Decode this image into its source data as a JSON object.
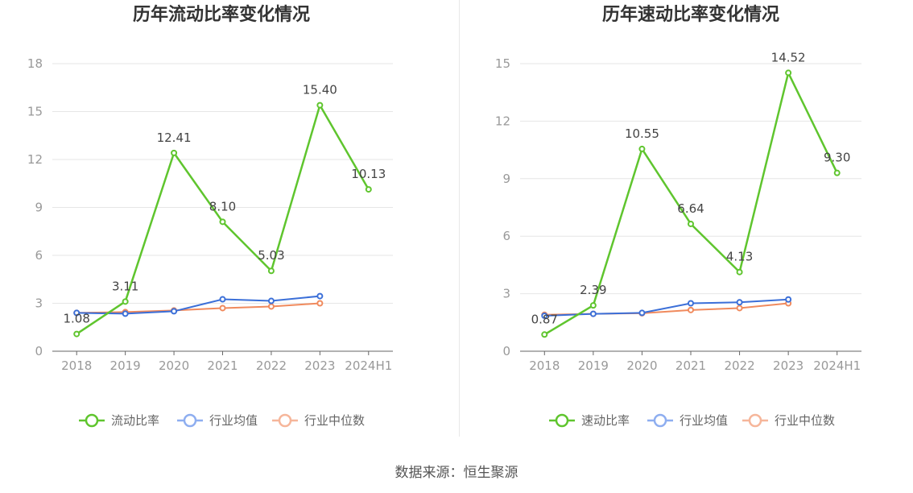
{
  "source": "数据来源：恒生聚源",
  "colors": {
    "primary": "#5fc52e",
    "average": "#3b6fd8",
    "median": "#f08a5d",
    "grid": "#e6e6e6",
    "axis": "#666666"
  },
  "chart_data": [
    {
      "type": "line",
      "title": "历年流动比率变化情况",
      "categories": [
        "2018",
        "2019",
        "2020",
        "2021",
        "2022",
        "2023",
        "2024H1"
      ],
      "ylim": [
        0,
        18
      ],
      "yticks": [
        0,
        3,
        6,
        9,
        12,
        15,
        18
      ],
      "grid": true,
      "legend_position": "bottom",
      "series": [
        {
          "name": "流动比率",
          "values": [
            1.08,
            3.11,
            12.41,
            8.1,
            5.03,
            15.4,
            10.13
          ],
          "labels": [
            "1.08",
            "3.11",
            "12.41",
            "8.10",
            "5.03",
            "15.40",
            "10.13"
          ]
        },
        {
          "name": "行业均值",
          "values": [
            2.4,
            2.35,
            2.5,
            3.25,
            3.15,
            3.45,
            null
          ]
        },
        {
          "name": "行业中位数",
          "values": [
            2.4,
            2.45,
            2.55,
            2.7,
            2.8,
            3.0,
            null
          ]
        }
      ]
    },
    {
      "type": "line",
      "title": "历年速动比率变化情况",
      "categories": [
        "2018",
        "2019",
        "2020",
        "2021",
        "2022",
        "2023",
        "2024H1"
      ],
      "ylim": [
        0,
        15
      ],
      "yticks": [
        0,
        3,
        6,
        9,
        12,
        15
      ],
      "grid": true,
      "legend_position": "bottom",
      "series": [
        {
          "name": "速动比率",
          "values": [
            0.87,
            2.39,
            10.55,
            6.64,
            4.13,
            14.52,
            9.3
          ],
          "labels": [
            "0.87",
            "2.39",
            "10.55",
            "6.64",
            "4.13",
            "14.52",
            "9.30"
          ]
        },
        {
          "name": "行业均值",
          "values": [
            1.85,
            1.95,
            2.0,
            2.5,
            2.55,
            2.7,
            null
          ]
        },
        {
          "name": "行业中位数",
          "values": [
            1.9,
            1.95,
            1.98,
            2.15,
            2.25,
            2.5,
            null
          ]
        }
      ]
    }
  ]
}
